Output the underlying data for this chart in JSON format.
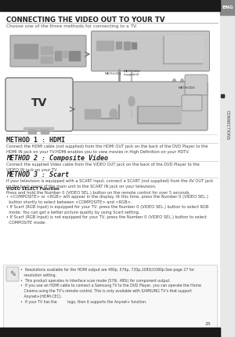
{
  "title": "CONNECTING THE VIDEO OUT TO YOUR TV",
  "subtitle": "Choose one of the three methods for connecting to a TV.",
  "page_bg": "#ffffff",
  "eng_text": "ENG",
  "connections_text": "CONNECTIONS",
  "method1_title": "METHOD 1 : HDMI",
  "method2_title": "METHOD 2 : Composite Video",
  "method3_title": "METHOD 3 : Scart",
  "method1_body": "Connect the HDMI cable (not supplied) from the HDMI OUT jack on the back of the DVD Player to the\nHDMI IN jack on your TV.HDMI enables you to view movies in High Definition on your HDTV.",
  "method2_body": "Connect the supplied Video cable from the VIDEO OUT jack on the back of the DVD Player to the\nVIDEO IN jack on your TV.",
  "method3_body": "If your television is equipped with a SCART input, connect a SCART (not supplied) from the AV OUT jack\non the back panel of the main unit to the SCART IN jack on your television.",
  "video_select_title": "VIDEO SELECT Function",
  "video_select_body1": "Press and hold the Number 0 (VIDEO SEL.) button on the remote control for over 5 seconds.",
  "video_select_body2": "• <COMPOSITE> or <RGB> will appear in the display. At this time, press the Number 0 (VIDEO SEL.)\n  button shortly to select between <COMPOSITE> and <RGB>.\n• If Scart (RGB Input) is equipped for your TV, press the Number 0 (VIDEO SEL.) button to select RGB\n  mode. You can get a better picture quality by using Scart setting.\n• If Scart (RGB Input) is not equipped for your TV, press the Number 0 (VIDEO SEL.) button to select\n  COMPOSITE mode.",
  "note_line1": "•  Resolutions available for the HDMI output are 480p, 576p, 720p,1080i/1080p.See page 27 for",
  "note_line2": "   resolution setting.",
  "note_line3": "•  This product operates in Interface scan mode (576i, 480i) for component output.",
  "note_line4": "•  If you use an HDMI cable to connect a Samsung TV to the DVD Player, you can operate the Home",
  "note_line5": "   Cinema using the TV's remote control. This is only available with SAMSUNG TV's that support",
  "note_line6": "   Anynet+(HDMI-CEC).",
  "note_line7": "•  If your TV has the         logo, then it supports the Anynet+ function.",
  "page_number": "25"
}
